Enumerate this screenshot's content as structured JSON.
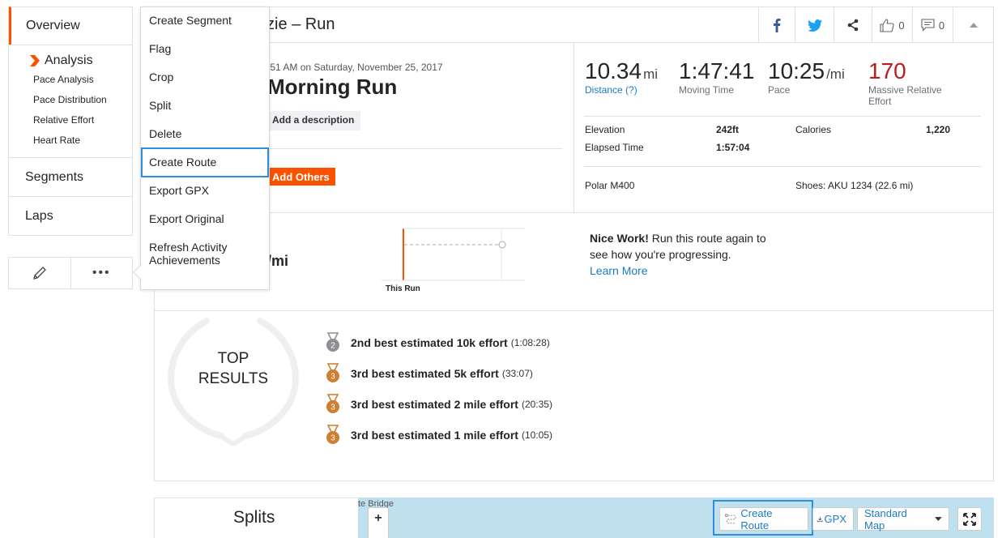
{
  "sidebar": {
    "overview": "Overview",
    "analysis": "Analysis",
    "analysis_items": [
      "Pace Analysis",
      "Pace Distribution",
      "Relative Effort",
      "Heart Rate"
    ],
    "segments": "Segments",
    "laps": "Laps",
    "more": "•••"
  },
  "menu": {
    "items": [
      "Create Segment",
      "Flag",
      "Crop",
      "Split",
      "Delete",
      "Create Route",
      "Export GPX",
      "Export Original",
      "Refresh Activity Achievements"
    ],
    "active_index": 5
  },
  "header": {
    "title": "zie – Run",
    "likes": "0",
    "comments": "0"
  },
  "activity": {
    "date": ":51 AM on Saturday, November 25, 2017",
    "name": "Morning Run",
    "add_description": "Add a description",
    "add_others": "Add Others"
  },
  "stats": {
    "distance": "10.34",
    "distance_unit": "mi",
    "distance_label": "Distance (?)",
    "moving_time": "1:47:41",
    "moving_time_label": "Moving Time",
    "pace": "10:25",
    "pace_unit": "/mi",
    "pace_label": "Pace",
    "effort": "170",
    "effort_label": "Massive Relative Effort",
    "elevation_label": "Elevation",
    "elevation": "242ft",
    "calories_label": "Calories",
    "calories": "1,220",
    "elapsed_label": "Elapsed Time",
    "elapsed": "1:57:04",
    "device": "Polar M400",
    "shoes": "Shoes: AKU 1234 (22.6 mi)"
  },
  "comparison": {
    "pace_unit": "/mi",
    "this_run": "This Run",
    "nice_work_bold": "Nice Work!",
    "nice_work_text": " Run this route again to see how you're progressing.",
    "learn_more": "Learn More"
  },
  "results": {
    "title_line1": "TOP",
    "title_line2": "RESULTS",
    "items": [
      {
        "rank": "2",
        "effort": "2nd best estimated 10k effort",
        "time": "(1:08:28)",
        "color": "#8e8e93"
      },
      {
        "rank": "3",
        "effort": "3rd best estimated 5k effort",
        "time": "(33:07)",
        "color": "#cd7f32"
      },
      {
        "rank": "3",
        "effort": "3rd best estimated 2 mile effort",
        "time": "(20:35)",
        "color": "#cd7f32"
      },
      {
        "rank": "3",
        "effort": "3rd best estimated 1 mile effort",
        "time": "(10:05)",
        "color": "#cd7f32"
      }
    ]
  },
  "bottom": {
    "splits": "Splits",
    "map_label": "te Bridge",
    "zoom_in": "+",
    "create_route": "Create Route",
    "gpx": "GPX",
    "map_style": "Standard Map"
  },
  "colors": {
    "accent": "#fc5200",
    "link": "#1a7bc4",
    "effort": "#bd1b1b",
    "highlight": "#2d8fdc"
  }
}
